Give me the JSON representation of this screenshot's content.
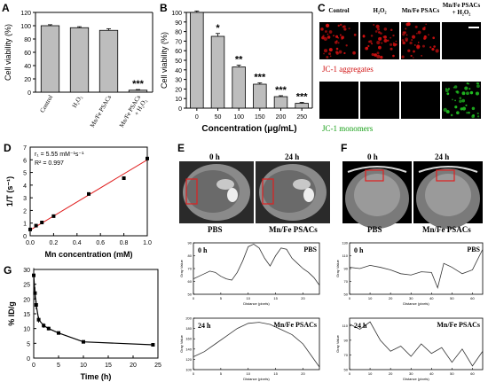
{
  "panels": [
    {
      "letter": "A"
    },
    {
      "letter": "B"
    },
    {
      "letter": "C"
    },
    {
      "letter": "D"
    },
    {
      "letter": "E"
    },
    {
      "letter": "F"
    },
    {
      "letter": "G"
    }
  ],
  "chart_data": [
    {
      "id": "A",
      "type": "bar",
      "ylabel": "Cell viability (%)",
      "ylim": [
        0,
        120
      ],
      "yticks": [
        0,
        20,
        40,
        60,
        80,
        100,
        120
      ],
      "categories": [
        "Control",
        "H₂O₂",
        "Mn/Fe PSACs",
        "Mn/Fe PSACs\n+ H₂O₂"
      ],
      "values": [
        100,
        97,
        93,
        3
      ],
      "errors": [
        1.5,
        1.5,
        2.5,
        1
      ],
      "annotations": [
        {
          "category_index": 3,
          "text": "***"
        }
      ]
    },
    {
      "id": "B",
      "type": "bar",
      "xlabel": "Concentration (μg/mL)",
      "ylabel": "Cell viability (%)",
      "ylim": [
        0,
        100
      ],
      "yticks": [
        0,
        10,
        20,
        30,
        40,
        50,
        60,
        70,
        80,
        90,
        100
      ],
      "categories": [
        "0",
        "50",
        "100",
        "150",
        "200",
        "250"
      ],
      "values": [
        100,
        75,
        43,
        25,
        12,
        5
      ],
      "errors": [
        1.5,
        3,
        2,
        1.5,
        1,
        1
      ],
      "annotations": [
        "",
        "*",
        "**",
        "***",
        "***",
        "***"
      ]
    },
    {
      "id": "D",
      "type": "scatter",
      "xlabel": "Mn concentration (mM)",
      "ylabel": "1/T (s⁻¹)",
      "xlim": [
        0,
        1.0
      ],
      "ylim": [
        0,
        7
      ],
      "xticks": [
        0.0,
        0.2,
        0.4,
        0.6,
        0.8,
        1.0
      ],
      "yticks": [
        0,
        1,
        2,
        3,
        4,
        5,
        6,
        7
      ],
      "x": [
        0,
        0.05,
        0.1,
        0.2,
        0.5,
        0.8,
        1.0
      ],
      "y": [
        0.5,
        0.8,
        1.05,
        1.55,
        3.3,
        4.55,
        6.1
      ],
      "fit": {
        "slope": 5.55,
        "intercept": 0.45
      },
      "annotation_r1": "r₁ = 5.55 mM⁻¹s⁻¹",
      "annotation_r2": "R² = 0.997"
    },
    {
      "id": "G",
      "type": "line",
      "xlabel": "Time (h)",
      "ylabel": "% ID/g",
      "xlim": [
        0,
        25
      ],
      "ylim": [
        0,
        30
      ],
      "xticks": [
        0,
        5,
        10,
        15,
        20,
        25
      ],
      "yticks": [
        0,
        5,
        10,
        15,
        20,
        25,
        30
      ],
      "x": [
        0,
        0.25,
        0.5,
        1,
        2,
        3,
        5,
        10,
        24
      ],
      "y": [
        28,
        22,
        18,
        13,
        11,
        10,
        8.5,
        5.5,
        4.5
      ],
      "errors": [
        2.5,
        2,
        1.5,
        1,
        0.8,
        0.6,
        0.5,
        0.4,
        0.3
      ]
    },
    {
      "id": "E-PBS",
      "type": "line",
      "title": "PBS",
      "time_label": "0 h",
      "xlabel": "Distance (pixels)",
      "ylabel": "Gray Value",
      "xlim": [
        0,
        23
      ],
      "ylim": [
        50,
        90
      ],
      "xticks": [
        0,
        5,
        10,
        15,
        20
      ],
      "yticks": [
        50,
        60,
        70,
        80,
        90
      ],
      "x": [
        0,
        1,
        2,
        3,
        4,
        5,
        6,
        7,
        8,
        9,
        10,
        11,
        12,
        13,
        14,
        15,
        16,
        17,
        18,
        19,
        20,
        21,
        22,
        23
      ],
      "y": [
        62,
        64,
        66,
        68,
        67,
        64,
        62,
        61,
        67,
        76,
        87,
        89,
        86,
        78,
        72,
        80,
        86,
        85,
        78,
        74,
        70,
        67,
        63,
        57
      ]
    },
    {
      "id": "E-Mn",
      "type": "line",
      "title": "Mn/Fe PSACs",
      "time_label": "24 h",
      "xlabel": "Distance (pixels)",
      "ylabel": "Gray Value",
      "xlim": [
        0,
        23
      ],
      "ylim": [
        100,
        200
      ],
      "xticks": [
        0,
        5,
        10,
        15,
        20
      ],
      "yticks": [
        100,
        120,
        140,
        160,
        180,
        200
      ],
      "x": [
        0,
        2,
        4,
        6,
        8,
        10,
        12,
        14,
        16,
        18,
        20,
        22,
        23
      ],
      "y": [
        125,
        135,
        150,
        165,
        180,
        190,
        192,
        188,
        178,
        168,
        150,
        120,
        105
      ]
    },
    {
      "id": "F-PBS",
      "type": "line",
      "title": "PBS",
      "time_label": "0 h",
      "xlabel": "Distance (pixels)",
      "ylabel": "Gray Value",
      "xlim": [
        0,
        65
      ],
      "ylim": [
        50,
        130
      ],
      "xticks": [
        0,
        10,
        20,
        30,
        40,
        50,
        60
      ],
      "yticks": [
        50,
        70,
        90,
        110,
        130
      ],
      "x": [
        0,
        5,
        10,
        15,
        20,
        25,
        30,
        35,
        40,
        43,
        46,
        50,
        55,
        60,
        65
      ],
      "y": [
        92,
        90,
        95,
        92,
        88,
        82,
        80,
        85,
        84,
        60,
        98,
        92,
        82,
        88,
        120
      ]
    },
    {
      "id": "F-Mn",
      "type": "line",
      "title": "Mn/Fe PSACs",
      "time_label": "24 h",
      "xlabel": "Distance (pixels)",
      "ylabel": "Gray Value",
      "xlim": [
        0,
        65
      ],
      "ylim": [
        50,
        120
      ],
      "xticks": [
        0,
        10,
        20,
        30,
        40,
        50,
        60
      ],
      "yticks": [
        50,
        70,
        90,
        110
      ],
      "x": [
        0,
        5,
        10,
        15,
        20,
        25,
        30,
        35,
        40,
        45,
        50,
        55,
        60,
        65
      ],
      "y": [
        112,
        105,
        115,
        90,
        75,
        82,
        68,
        85,
        72,
        80,
        60,
        78,
        55,
        75
      ]
    }
  ],
  "panelC": {
    "cols": [
      "Control",
      "H₂O₂",
      "Mn/Fe PSACs",
      "Mn/Fe PSACs\n+ H₂O₂"
    ],
    "row1_label": "JC-1 aggregates",
    "row2_label": "JC-1 monomers",
    "row1_color": "#d01010",
    "row2_color": "#22c422"
  },
  "panelE": {
    "time0": "0 h",
    "time24": "24 h",
    "left": "PBS",
    "right": "Mn/Fe PSACs"
  },
  "panelF": {
    "time0": "0 h",
    "time24": "24 h",
    "left": "PBS",
    "right": "Mn/Fe PSACs"
  }
}
